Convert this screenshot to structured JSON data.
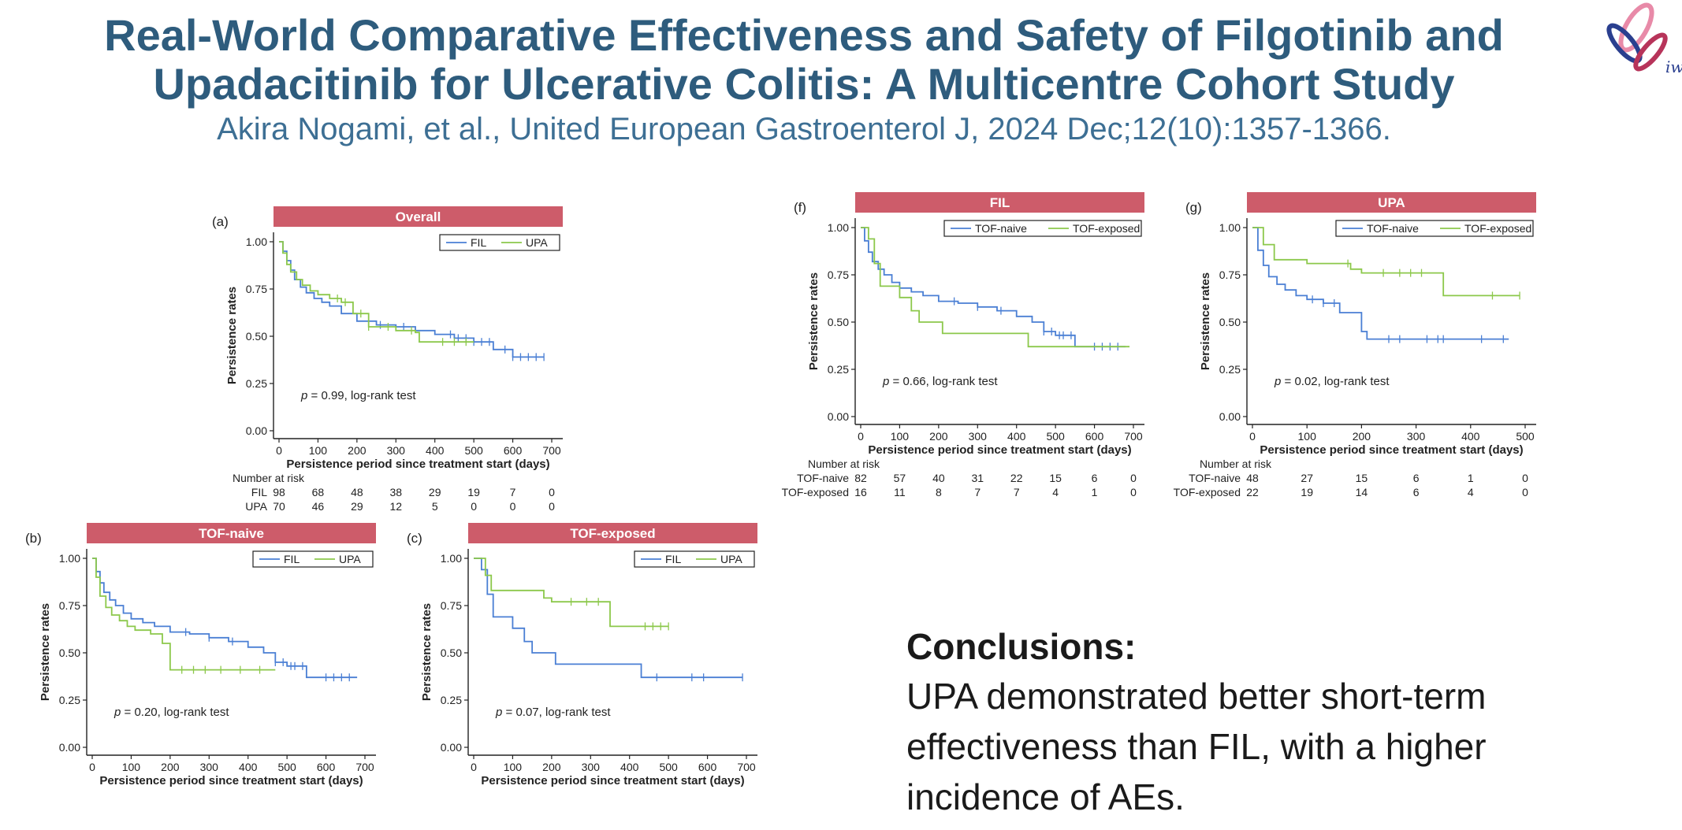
{
  "header": {
    "title_line1": "Real-World Comparative Effectiveness and Safety of Filgotinib and",
    "title_line2": "Upadacitinib for Ulcerative Colitis: A Multicentre Cohort Study",
    "citation": "Akira Nogami, et al., United European Gastroenterol J, 2024 Dec;12(10):1357-1366."
  },
  "logo": {
    "text": "iwi"
  },
  "colors": {
    "blue": "#4a7fd4",
    "green": "#8cc84b",
    "header_bar": "#cd5c6a",
    "title": "#2e5c7d",
    "citation": "#3d6f94"
  },
  "chart_data": [
    {
      "id": "a",
      "panel_label": "(a)",
      "type": "line",
      "title": "Overall",
      "xlabel": "Persistence period since treatment start (days)",
      "ylabel": "Persistence rates",
      "xlim": [
        0,
        700
      ],
      "ylim": [
        0,
        1
      ],
      "xticks": [
        "0",
        "100",
        "200",
        "300",
        "400",
        "500",
        "600",
        "700"
      ],
      "yticks": [
        "0.00",
        "0.25",
        "0.50",
        "0.75",
        "1.00"
      ],
      "annotation_p": "p",
      "annotation_rest": " = 0.99, log-rank test",
      "legend": [
        "FIL",
        "UPA"
      ],
      "series": [
        {
          "name": "FIL",
          "color": "blue",
          "x": [
            0,
            10,
            20,
            30,
            40,
            55,
            70,
            90,
            110,
            130,
            160,
            200,
            250,
            300,
            350,
            400,
            450,
            500,
            550,
            600,
            680
          ],
          "y": [
            1,
            0.95,
            0.9,
            0.85,
            0.8,
            0.76,
            0.73,
            0.7,
            0.68,
            0.66,
            0.62,
            0.58,
            0.56,
            0.55,
            0.53,
            0.51,
            0.49,
            0.47,
            0.43,
            0.39,
            0.39
          ],
          "censor": [
            260,
            320,
            440,
            460,
            480,
            500,
            520,
            540,
            580,
            600,
            620,
            640,
            660,
            680
          ]
        },
        {
          "name": "UPA",
          "color": "green",
          "x": [
            0,
            10,
            20,
            30,
            45,
            60,
            80,
            100,
            130,
            160,
            190,
            230,
            300,
            350,
            360,
            400,
            450,
            500
          ],
          "y": [
            1,
            0.94,
            0.88,
            0.84,
            0.8,
            0.77,
            0.74,
            0.72,
            0.7,
            0.68,
            0.62,
            0.55,
            0.53,
            0.52,
            0.47,
            0.47,
            0.47,
            0.47
          ],
          "censor": [
            150,
            170,
            210,
            230,
            280,
            340,
            420,
            450,
            480
          ]
        }
      ],
      "risk": {
        "header": "Number at risk",
        "times": [
          0,
          100,
          200,
          300,
          400,
          500,
          600,
          700
        ],
        "rows": [
          {
            "label": "FIL",
            "values": [
              "98",
              "68",
              "48",
              "38",
              "29",
              "19",
              "7",
              "0"
            ]
          },
          {
            "label": "UPA",
            "values": [
              "70",
              "46",
              "29",
              "12",
              "5",
              "0",
              "0",
              "0"
            ]
          }
        ]
      }
    },
    {
      "id": "b",
      "panel_label": "(b)",
      "type": "line",
      "title": "TOF-naive",
      "xlabel": "Persistence period since treatment start (days)",
      "ylabel": "Persistence rates",
      "xlim": [
        0,
        700
      ],
      "ylim": [
        0,
        1
      ],
      "xticks": [
        "0",
        "100",
        "200",
        "300",
        "400",
        "500",
        "600",
        "700"
      ],
      "yticks": [
        "0.00",
        "0.25",
        "0.50",
        "0.75",
        "1.00"
      ],
      "annotation_p": "p",
      "annotation_rest": " = 0.20, log-rank test",
      "legend": [
        "FIL",
        "UPA"
      ],
      "series": [
        {
          "name": "FIL",
          "color": "blue",
          "x": [
            0,
            10,
            20,
            30,
            45,
            60,
            80,
            100,
            130,
            160,
            200,
            250,
            300,
            350,
            400,
            440,
            470,
            500,
            550,
            600,
            680
          ],
          "y": [
            1,
            0.93,
            0.87,
            0.82,
            0.78,
            0.75,
            0.71,
            0.68,
            0.66,
            0.64,
            0.61,
            0.6,
            0.58,
            0.56,
            0.53,
            0.5,
            0.45,
            0.43,
            0.37,
            0.37,
            0.37
          ],
          "censor": [
            240,
            300,
            360,
            470,
            490,
            510,
            520,
            540,
            600,
            620,
            640,
            660
          ]
        },
        {
          "name": "UPA",
          "color": "green",
          "x": [
            0,
            10,
            20,
            35,
            50,
            70,
            90,
            110,
            150,
            180,
            200,
            250,
            300,
            400,
            470
          ],
          "y": [
            1,
            0.9,
            0.8,
            0.74,
            0.7,
            0.67,
            0.64,
            0.62,
            0.6,
            0.55,
            0.41,
            0.41,
            0.41,
            0.41,
            0.41
          ],
          "censor": [
            230,
            260,
            290,
            330,
            380,
            430
          ]
        }
      ],
      "risk": {
        "header": "Number at risk",
        "times": [],
        "rows": []
      }
    },
    {
      "id": "c",
      "panel_label": "(c)",
      "type": "line",
      "title": "TOF-exposed",
      "xlabel": "Persistence period since treatment start (days)",
      "ylabel": "Persistence rates",
      "xlim": [
        0,
        700
      ],
      "ylim": [
        0,
        1
      ],
      "xticks": [
        "0",
        "100",
        "200",
        "300",
        "400",
        "500",
        "600",
        "700"
      ],
      "yticks": [
        "0.00",
        "0.25",
        "0.50",
        "0.75",
        "1.00"
      ],
      "annotation_p": "p",
      "annotation_rest": " = 0.07, log-rank test",
      "legend": [
        "FIL",
        "UPA"
      ],
      "series": [
        {
          "name": "FIL",
          "color": "blue",
          "x": [
            0,
            20,
            35,
            50,
            100,
            130,
            150,
            210,
            300,
            430,
            690
          ],
          "y": [
            1,
            0.94,
            0.81,
            0.69,
            0.63,
            0.56,
            0.5,
            0.44,
            0.44,
            0.37,
            0.37
          ],
          "censor": [
            470,
            560,
            590,
            690
          ]
        },
        {
          "name": "UPA",
          "color": "green",
          "x": [
            0,
            30,
            45,
            180,
            200,
            350,
            500
          ],
          "y": [
            1,
            0.91,
            0.83,
            0.79,
            0.77,
            0.64,
            0.64
          ],
          "censor": [
            250,
            290,
            320,
            440,
            460,
            480,
            500
          ]
        }
      ],
      "risk": {
        "header": "Number at risk",
        "times": [],
        "rows": []
      }
    },
    {
      "id": "f",
      "panel_label": "(f)",
      "type": "line",
      "title": "FIL",
      "xlabel": "Persistence period since treatment start (days)",
      "ylabel": "Persistence rates",
      "xlim": [
        0,
        700
      ],
      "ylim": [
        0,
        1
      ],
      "xticks": [
        "0",
        "100",
        "200",
        "300",
        "400",
        "500",
        "600",
        "700"
      ],
      "yticks": [
        "0.00",
        "0.25",
        "0.50",
        "0.75",
        "1.00"
      ],
      "annotation_p": "p",
      "annotation_rest": " = 0.66, log-rank test",
      "legend": [
        "TOF-naive",
        "TOF-exposed"
      ],
      "series": [
        {
          "name": "TOF-naive",
          "color": "blue",
          "x": [
            0,
            10,
            20,
            30,
            45,
            60,
            80,
            100,
            130,
            160,
            200,
            250,
            300,
            350,
            400,
            440,
            470,
            500,
            550,
            600,
            680
          ],
          "y": [
            1,
            0.93,
            0.87,
            0.82,
            0.78,
            0.75,
            0.71,
            0.68,
            0.66,
            0.64,
            0.61,
            0.6,
            0.58,
            0.56,
            0.53,
            0.5,
            0.45,
            0.43,
            0.37,
            0.37,
            0.37
          ],
          "censor": [
            240,
            300,
            360,
            470,
            490,
            510,
            520,
            540,
            600,
            620,
            640,
            660
          ]
        },
        {
          "name": "TOF-exposed",
          "color": "green",
          "x": [
            0,
            20,
            35,
            50,
            100,
            130,
            150,
            210,
            300,
            430,
            690
          ],
          "y": [
            1,
            0.94,
            0.81,
            0.69,
            0.63,
            0.56,
            0.5,
            0.44,
            0.44,
            0.37,
            0.37
          ],
          "censor": []
        }
      ],
      "risk": {
        "header": "Number at risk",
        "times": [
          0,
          100,
          200,
          300,
          400,
          500,
          600,
          700
        ],
        "rows": [
          {
            "label": "TOF-naive",
            "values": [
              "82",
              "57",
              "40",
              "31",
              "22",
              "15",
              "6",
              "0"
            ]
          },
          {
            "label": "TOF-exposed",
            "values": [
              "16",
              "11",
              "8",
              "7",
              "7",
              "4",
              "1",
              "0"
            ]
          }
        ]
      }
    },
    {
      "id": "g",
      "panel_label": "(g)",
      "type": "line",
      "title": "UPA",
      "xlabel": "Persistence period since treatment start (days)",
      "ylabel": "Persistence rates",
      "xlim": [
        0,
        500
      ],
      "ylim": [
        0,
        1
      ],
      "xticks": [
        "0",
        "100",
        "200",
        "300",
        "400",
        "500"
      ],
      "yticks": [
        "0.00",
        "0.25",
        "0.50",
        "0.75",
        "1.00"
      ],
      "annotation_p": "p",
      "annotation_rest": " = 0.02, log-rank test",
      "legend": [
        "TOF-naive",
        "TOF-exposed"
      ],
      "series": [
        {
          "name": "TOF-naive",
          "color": "blue",
          "x": [
            0,
            10,
            20,
            30,
            45,
            60,
            80,
            100,
            130,
            160,
            200,
            210,
            230,
            300,
            400,
            470
          ],
          "y": [
            1,
            0.88,
            0.8,
            0.74,
            0.7,
            0.67,
            0.64,
            0.62,
            0.6,
            0.55,
            0.45,
            0.41,
            0.41,
            0.41,
            0.41,
            0.41
          ],
          "censor": [
            110,
            130,
            150,
            250,
            270,
            320,
            340,
            350,
            420,
            460
          ]
        },
        {
          "name": "TOF-exposed",
          "color": "green",
          "x": [
            0,
            20,
            40,
            100,
            180,
            200,
            350,
            490
          ],
          "y": [
            1,
            0.91,
            0.83,
            0.81,
            0.78,
            0.76,
            0.64,
            0.64
          ],
          "censor": [
            175,
            240,
            270,
            290,
            310,
            440,
            490
          ]
        }
      ],
      "risk": {
        "header": "Number at risk",
        "times": [
          0,
          100,
          200,
          300,
          400,
          500
        ],
        "rows": [
          {
            "label": "TOF-naive",
            "values": [
              "48",
              "27",
              "15",
              "6",
              "1",
              "0"
            ]
          },
          {
            "label": "TOF-exposed",
            "values": [
              "22",
              "19",
              "14",
              "6",
              "4",
              "0"
            ]
          }
        ]
      }
    }
  ],
  "conclusions": {
    "heading": "Conclusions:",
    "line1": "UPA demonstrated better short-term",
    "line2": "effectiveness than FIL, with a higher",
    "line3": "incidence of AEs."
  }
}
